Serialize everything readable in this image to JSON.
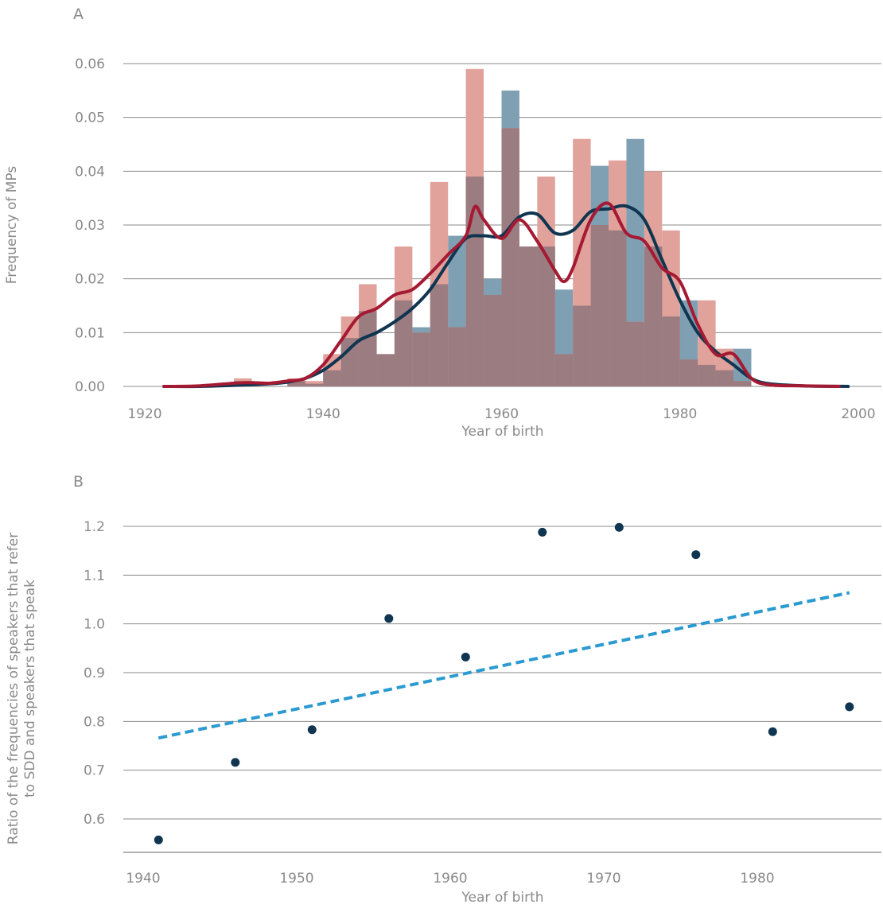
{
  "colors": {
    "men_bar": "#7f9fb3",
    "women_bar": "#e0a29a",
    "overlap_bar": "#9b7c80",
    "men_line": "#0f3550",
    "women_line": "#a51a33",
    "trend": "#2a9ad1",
    "point": "#0f3550",
    "text": "#8a8a8a"
  },
  "chart_data": [
    {
      "panel": "A",
      "type": "histogram_kde",
      "xlabel": "Year of birth",
      "ylabel": "Frequency of MPs",
      "xlim": [
        1920,
        2000
      ],
      "ylim": [
        0,
        0.06
      ],
      "x_ticks": [
        "1920",
        "1940",
        "1960",
        "1980",
        "2000"
      ],
      "y_ticks": [
        "0.00",
        "0.01",
        "0.02",
        "0.03",
        "0.04",
        "0.05",
        "0.06"
      ],
      "grid": "horizontal",
      "bin_width": 2,
      "series": [
        {
          "role": "hist-blue",
          "bins": [
            {
              "x0": 1930,
              "v": 0.001
            },
            {
              "x0": 1936,
              "v": 0.001
            },
            {
              "x0": 1938,
              "v": 0.0005
            },
            {
              "x0": 1940,
              "v": 0.003
            },
            {
              "x0": 1942,
              "v": 0.009
            },
            {
              "x0": 1944,
              "v": 0.014
            },
            {
              "x0": 1946,
              "v": 0.006
            },
            {
              "x0": 1948,
              "v": 0.016
            },
            {
              "x0": 1950,
              "v": 0.011
            },
            {
              "x0": 1952,
              "v": 0.019
            },
            {
              "x0": 1954,
              "v": 0.028
            },
            {
              "x0": 1956,
              "v": 0.039
            },
            {
              "x0": 1958,
              "v": 0.02
            },
            {
              "x0": 1960,
              "v": 0.055
            },
            {
              "x0": 1962,
              "v": 0.026
            },
            {
              "x0": 1964,
              "v": 0.026
            },
            {
              "x0": 1966,
              "v": 0.018
            },
            {
              "x0": 1968,
              "v": 0.015
            },
            {
              "x0": 1970,
              "v": 0.041
            },
            {
              "x0": 1972,
              "v": 0.029
            },
            {
              "x0": 1974,
              "v": 0.046
            },
            {
              "x0": 1976,
              "v": 0.026
            },
            {
              "x0": 1978,
              "v": 0.013
            },
            {
              "x0": 1980,
              "v": 0.016
            },
            {
              "x0": 1982,
              "v": 0.004
            },
            {
              "x0": 1984,
              "v": 0.003
            },
            {
              "x0": 1986,
              "v": 0.007
            }
          ]
        },
        {
          "role": "hist-red",
          "bins": [
            {
              "x0": 1930,
              "v": 0.0015
            },
            {
              "x0": 1936,
              "v": 0.0015
            },
            {
              "x0": 1938,
              "v": 0.001
            },
            {
              "x0": 1940,
              "v": 0.006
            },
            {
              "x0": 1942,
              "v": 0.013
            },
            {
              "x0": 1944,
              "v": 0.019
            },
            {
              "x0": 1946,
              "v": 0.006
            },
            {
              "x0": 1948,
              "v": 0.026
            },
            {
              "x0": 1950,
              "v": 0.01
            },
            {
              "x0": 1952,
              "v": 0.038
            },
            {
              "x0": 1954,
              "v": 0.011
            },
            {
              "x0": 1956,
              "v": 0.059
            },
            {
              "x0": 1958,
              "v": 0.017
            },
            {
              "x0": 1960,
              "v": 0.048
            },
            {
              "x0": 1962,
              "v": 0.026
            },
            {
              "x0": 1964,
              "v": 0.039
            },
            {
              "x0": 1966,
              "v": 0.006
            },
            {
              "x0": 1968,
              "v": 0.046
            },
            {
              "x0": 1970,
              "v": 0.03
            },
            {
              "x0": 1972,
              "v": 0.042
            },
            {
              "x0": 1974,
              "v": 0.012
            },
            {
              "x0": 1976,
              "v": 0.04
            },
            {
              "x0": 1978,
              "v": 0.029
            },
            {
              "x0": 1980,
              "v": 0.005
            },
            {
              "x0": 1982,
              "v": 0.016
            },
            {
              "x0": 1984,
              "v": 0.007
            },
            {
              "x0": 1986,
              "v": 0.001
            }
          ]
        },
        {
          "role": "kde-blue",
          "x": [
            1922,
            1926,
            1930,
            1934,
            1936,
            1938,
            1940,
            1942,
            1944,
            1946,
            1948,
            1950,
            1952,
            1954,
            1956,
            1958,
            1960,
            1962,
            1964,
            1966,
            1968,
            1970,
            1972,
            1974,
            1976,
            1978,
            1980,
            1982,
            1984,
            1986,
            1988,
            1990,
            1994,
            1999
          ],
          "y": [
            0.0,
            0.0,
            0.0002,
            0.0005,
            0.0008,
            0.0015,
            0.003,
            0.0055,
            0.0085,
            0.01,
            0.012,
            0.0145,
            0.018,
            0.023,
            0.0275,
            0.028,
            0.028,
            0.0315,
            0.032,
            0.0285,
            0.029,
            0.0325,
            0.033,
            0.0335,
            0.031,
            0.0235,
            0.016,
            0.01,
            0.0065,
            0.004,
            0.0015,
            0.0005,
            0.0001,
            0.0
          ]
        },
        {
          "role": "kde-red",
          "x": [
            1922,
            1926,
            1930,
            1932,
            1934,
            1936,
            1938,
            1940,
            1942,
            1944,
            1946,
            1948,
            1950,
            1952,
            1954,
            1956,
            1957,
            1958,
            1960,
            1962,
            1964,
            1966,
            1967,
            1968,
            1970,
            1972,
            1974,
            1976,
            1978,
            1980,
            1982,
            1984,
            1986,
            1988,
            1990,
            1994,
            1998
          ],
          "y": [
            0.0,
            0.0001,
            0.0006,
            0.0007,
            0.0006,
            0.001,
            0.0015,
            0.004,
            0.0085,
            0.013,
            0.0145,
            0.017,
            0.018,
            0.021,
            0.0245,
            0.028,
            0.0334,
            0.031,
            0.0275,
            0.031,
            0.027,
            0.0215,
            0.0195,
            0.022,
            0.031,
            0.034,
            0.0285,
            0.027,
            0.022,
            0.0195,
            0.0115,
            0.006,
            0.006,
            0.0015,
            0.0003,
            0.0001,
            0.0
          ]
        }
      ]
    },
    {
      "panel": "B",
      "type": "scatter",
      "xlabel": "Year of birth",
      "ylabel_lines": [
        "Ratio of the frequencies of speakers that refer",
        "to SDD and speakers that speak"
      ],
      "xlim": [
        1939.5,
        1987
      ],
      "ylim": [
        0.53,
        1.225
      ],
      "x_ticks": [
        "1940",
        "1950",
        "1960",
        "1970",
        "1980"
      ],
      "y_ticks": [
        "0.6",
        "0.7",
        "0.8",
        "0.9",
        "1.0",
        "1.1",
        "1.2"
      ],
      "grid": "horizontal",
      "points": {
        "x": [
          1941,
          1946,
          1951,
          1956,
          1961,
          1966,
          1971,
          1976,
          1981,
          1986
        ],
        "y": [
          0.557,
          0.716,
          0.783,
          1.011,
          0.932,
          1.188,
          1.198,
          1.142,
          0.779,
          0.83
        ]
      },
      "trend": {
        "x": [
          1941,
          1986
        ],
        "y": [
          0.766,
          1.064
        ]
      }
    }
  ]
}
